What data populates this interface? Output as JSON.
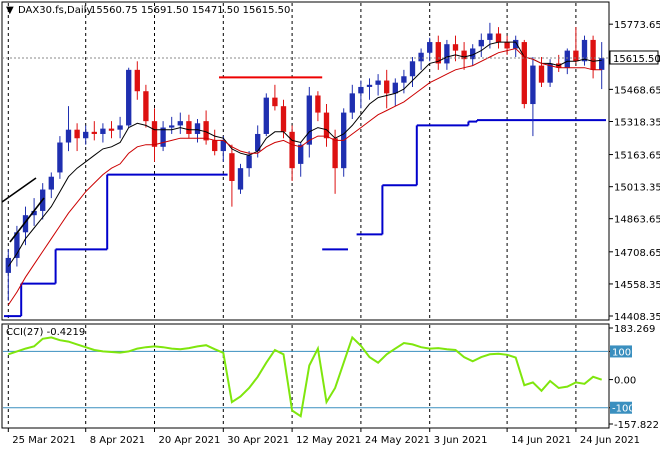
{
  "header": {
    "symbol": "DAX30.fs,Daily",
    "ohlc": "15560.75 15691.50 15471.50 15615.50",
    "cci_label": "CCI(27) -0.4219"
  },
  "current_price": "15615.50",
  "colors": {
    "bull": "#1f2fb0",
    "bear": "#dd1111",
    "ema_fast": "#000000",
    "ema_slow": "#cc0000",
    "support": "#0000cc",
    "resistance": "#ee0000",
    "cci": "#7fe60d",
    "cci_level": "#3a8fbf"
  },
  "chart_data": [
    {
      "type": "candlestick",
      "ylim": [
        14408.35,
        15840
      ],
      "yticks": [
        "15773.65",
        "15615.50",
        "15468.65",
        "15318.35",
        "15163.65",
        "15013.35",
        "14863.65",
        "14708.65",
        "14558.35",
        "14408.35"
      ],
      "xticks": [
        "25 Mar 2021",
        "8 Apr 2021",
        "20 Apr 2021",
        "30 Apr 2021",
        "12 May 2021",
        "24 May 2021",
        "3 Jun 2021",
        "14 Jun 2021",
        "24 Jun 2021"
      ],
      "xtick_index": [
        0,
        9,
        17,
        25,
        33,
        41,
        49,
        58,
        66
      ],
      "ohlc": [
        [
          14610,
          14720,
          14480,
          14680
        ],
        [
          14680,
          14830,
          14640,
          14800
        ],
        [
          14800,
          14920,
          14740,
          14880
        ],
        [
          14880,
          14960,
          14830,
          14900
        ],
        [
          14900,
          15030,
          14860,
          15000
        ],
        [
          15000,
          15080,
          14960,
          15060
        ],
        [
          15080,
          15250,
          15050,
          15220
        ],
        [
          15220,
          15390,
          15180,
          15280
        ],
        [
          15280,
          15310,
          15180,
          15240
        ],
        [
          15240,
          15300,
          15210,
          15270
        ],
        [
          15270,
          15320,
          15230,
          15260
        ],
        [
          15260,
          15310,
          15220,
          15285
        ],
        [
          15285,
          15320,
          15240,
          15275
        ],
        [
          15280,
          15340,
          15240,
          15300
        ],
        [
          15300,
          15570,
          15290,
          15560
        ],
        [
          15560,
          15600,
          15420,
          15460
        ],
        [
          15460,
          15490,
          15290,
          15320
        ],
        [
          15320,
          15380,
          15130,
          15200
        ],
        [
          15200,
          15320,
          15180,
          15290
        ],
        [
          15290,
          15340,
          15260,
          15300
        ],
        [
          15300,
          15360,
          15260,
          15320
        ],
        [
          15320,
          15350,
          15240,
          15260
        ],
        [
          15260,
          15330,
          15220,
          15310
        ],
        [
          15320,
          15370,
          15210,
          15230
        ],
        [
          15230,
          15280,
          15160,
          15180
        ],
        [
          15180,
          15250,
          15130,
          15230
        ],
        [
          15170,
          15210,
          14920,
          15040
        ],
        [
          15000,
          15120,
          14980,
          15100
        ],
        [
          15100,
          15180,
          15060,
          15160
        ],
        [
          15180,
          15300,
          15150,
          15260
        ],
        [
          15260,
          15450,
          15250,
          15430
        ],
        [
          15430,
          15490,
          15370,
          15390
        ],
        [
          15390,
          15420,
          15240,
          15270
        ],
        [
          15270,
          15300,
          15040,
          15100
        ],
        [
          15120,
          15220,
          15060,
          15210
        ],
        [
          15210,
          15480,
          15150,
          15440
        ],
        [
          15440,
          15460,
          15320,
          15360
        ],
        [
          15360,
          15400,
          15200,
          15240
        ],
        [
          15240,
          15280,
          14980,
          15100
        ],
        [
          15100,
          15380,
          15060,
          15360
        ],
        [
          15360,
          15490,
          15330,
          15450
        ],
        [
          15450,
          15510,
          15380,
          15480
        ],
        [
          15480,
          15520,
          15420,
          15490
        ],
        [
          15490,
          15540,
          15440,
          15510
        ],
        [
          15510,
          15560,
          15380,
          15450
        ],
        [
          15450,
          15520,
          15390,
          15500
        ],
        [
          15500,
          15560,
          15450,
          15530
        ],
        [
          15530,
          15620,
          15480,
          15600
        ],
        [
          15600,
          15660,
          15560,
          15640
        ],
        [
          15640,
          15710,
          15600,
          15690
        ],
        [
          15690,
          15720,
          15560,
          15590
        ],
        [
          15590,
          15700,
          15560,
          15680
        ],
        [
          15680,
          15720,
          15600,
          15650
        ],
        [
          15650,
          15690,
          15560,
          15610
        ],
        [
          15610,
          15680,
          15580,
          15660
        ],
        [
          15670,
          15730,
          15620,
          15700
        ],
        [
          15700,
          15780,
          15660,
          15730
        ],
        [
          15730,
          15760,
          15660,
          15690
        ],
        [
          15690,
          15720,
          15630,
          15660
        ],
        [
          15660,
          15720,
          15620,
          15700
        ],
        [
          15690,
          15700,
          15380,
          15400
        ],
        [
          15400,
          15620,
          15250,
          15580
        ],
        [
          15580,
          15620,
          15480,
          15500
        ],
        [
          15500,
          15610,
          15480,
          15590
        ],
        [
          15590,
          15630,
          15550,
          15570
        ],
        [
          15570,
          15660,
          15540,
          15650
        ],
        [
          15650,
          15760,
          15590,
          15600
        ],
        [
          15600,
          15720,
          15580,
          15700
        ],
        [
          15700,
          15720,
          15520,
          15560
        ],
        [
          15560,
          15690,
          15470,
          15615
        ]
      ],
      "ema_fast": [
        14640,
        14700,
        14770,
        14820,
        14870,
        14920,
        14990,
        15060,
        15100,
        15130,
        15160,
        15190,
        15200,
        15220,
        15290,
        15310,
        15300,
        15280,
        15280,
        15280,
        15290,
        15280,
        15280,
        15270,
        15250,
        15240,
        15190,
        15170,
        15160,
        15180,
        15240,
        15270,
        15270,
        15230,
        15220,
        15270,
        15290,
        15280,
        15240,
        15260,
        15300,
        15350,
        15400,
        15430,
        15440,
        15450,
        15470,
        15510,
        15550,
        15590,
        15600,
        15620,
        15630,
        15620,
        15630,
        15650,
        15680,
        15690,
        15690,
        15690,
        15620,
        15610,
        15590,
        15590,
        15580,
        15600,
        15600,
        15610,
        15600,
        15605
      ],
      "ema_slow": [
        14460,
        14520,
        14590,
        14650,
        14710,
        14770,
        14830,
        14890,
        14940,
        14990,
        15030,
        15070,
        15100,
        15120,
        15170,
        15200,
        15210,
        15210,
        15220,
        15230,
        15240,
        15240,
        15240,
        15240,
        15230,
        15230,
        15200,
        15180,
        15170,
        15170,
        15200,
        15220,
        15230,
        15210,
        15200,
        15230,
        15250,
        15250,
        15230,
        15230,
        15260,
        15290,
        15320,
        15350,
        15370,
        15390,
        15410,
        15440,
        15470,
        15500,
        15520,
        15540,
        15560,
        15570,
        15580,
        15600,
        15620,
        15640,
        15650,
        15660,
        15620,
        15610,
        15590,
        15580,
        15570,
        15570,
        15570,
        15570,
        15560,
        15560
      ],
      "support_steps": [
        [
          0,
          2,
          14408
        ],
        [
          2,
          6,
          14560
        ],
        [
          6,
          12,
          14720
        ],
        [
          12,
          26,
          15070
        ],
        [
          37,
          40,
          14720
        ],
        [
          41,
          44,
          14790
        ],
        [
          44,
          48,
          15020
        ],
        [
          48,
          54,
          15300
        ],
        [
          54,
          55,
          15318
        ],
        [
          55,
          70,
          15325
        ]
      ],
      "resistance_steps": [
        [
          25,
          37,
          15525
        ]
      ]
    },
    {
      "type": "line",
      "ylim": [
        -157.8221,
        183.269
      ],
      "yticks": [
        "183.269",
        "100",
        "0.00",
        "-100",
        "-157.8221"
      ],
      "levels": [
        100,
        -100
      ],
      "values": [
        90,
        100,
        110,
        118,
        145,
        150,
        140,
        135,
        125,
        115,
        105,
        100,
        98,
        96,
        100,
        110,
        115,
        118,
        115,
        110,
        108,
        112,
        118,
        122,
        108,
        95,
        -80,
        -60,
        -30,
        10,
        60,
        105,
        90,
        -110,
        -130,
        50,
        110,
        -80,
        -30,
        60,
        150,
        120,
        80,
        60,
        90,
        110,
        130,
        125,
        115,
        110,
        112,
        108,
        105,
        80,
        65,
        80,
        90,
        92,
        88,
        78,
        -20,
        -10,
        -40,
        -5,
        -30,
        -25,
        -10,
        -15,
        10,
        -0.42
      ]
    }
  ]
}
